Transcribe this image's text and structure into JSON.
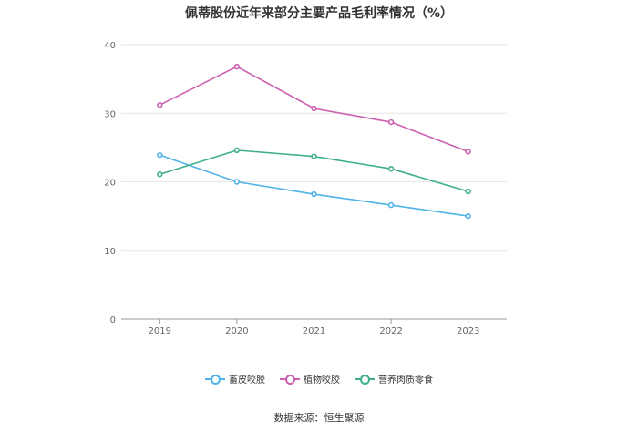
{
  "chart_data": {
    "type": "line",
    "title": "佩蒂股份近年来部分主要产品毛利率情况（%）",
    "categories": [
      "2019",
      "2020",
      "2021",
      "2022",
      "2023"
    ],
    "ylim": [
      0,
      40
    ],
    "yticks": [
      "0",
      "10",
      "20",
      "30",
      "40"
    ],
    "grid": true,
    "legend_position": "bottom",
    "series": [
      {
        "name": "畜皮咬胶",
        "color": "#4fb3e8",
        "values": [
          23.9,
          20.0,
          18.2,
          16.6,
          15.0
        ]
      },
      {
        "name": "植物咬胶",
        "color": "#cc5fb0",
        "values": [
          31.2,
          36.8,
          30.7,
          28.7,
          24.4
        ]
      },
      {
        "name": "营养肉质零食",
        "color": "#3fae8c",
        "values": [
          21.1,
          24.6,
          23.7,
          21.9,
          18.6
        ]
      }
    ]
  },
  "source": "数据来源：恒生聚源"
}
